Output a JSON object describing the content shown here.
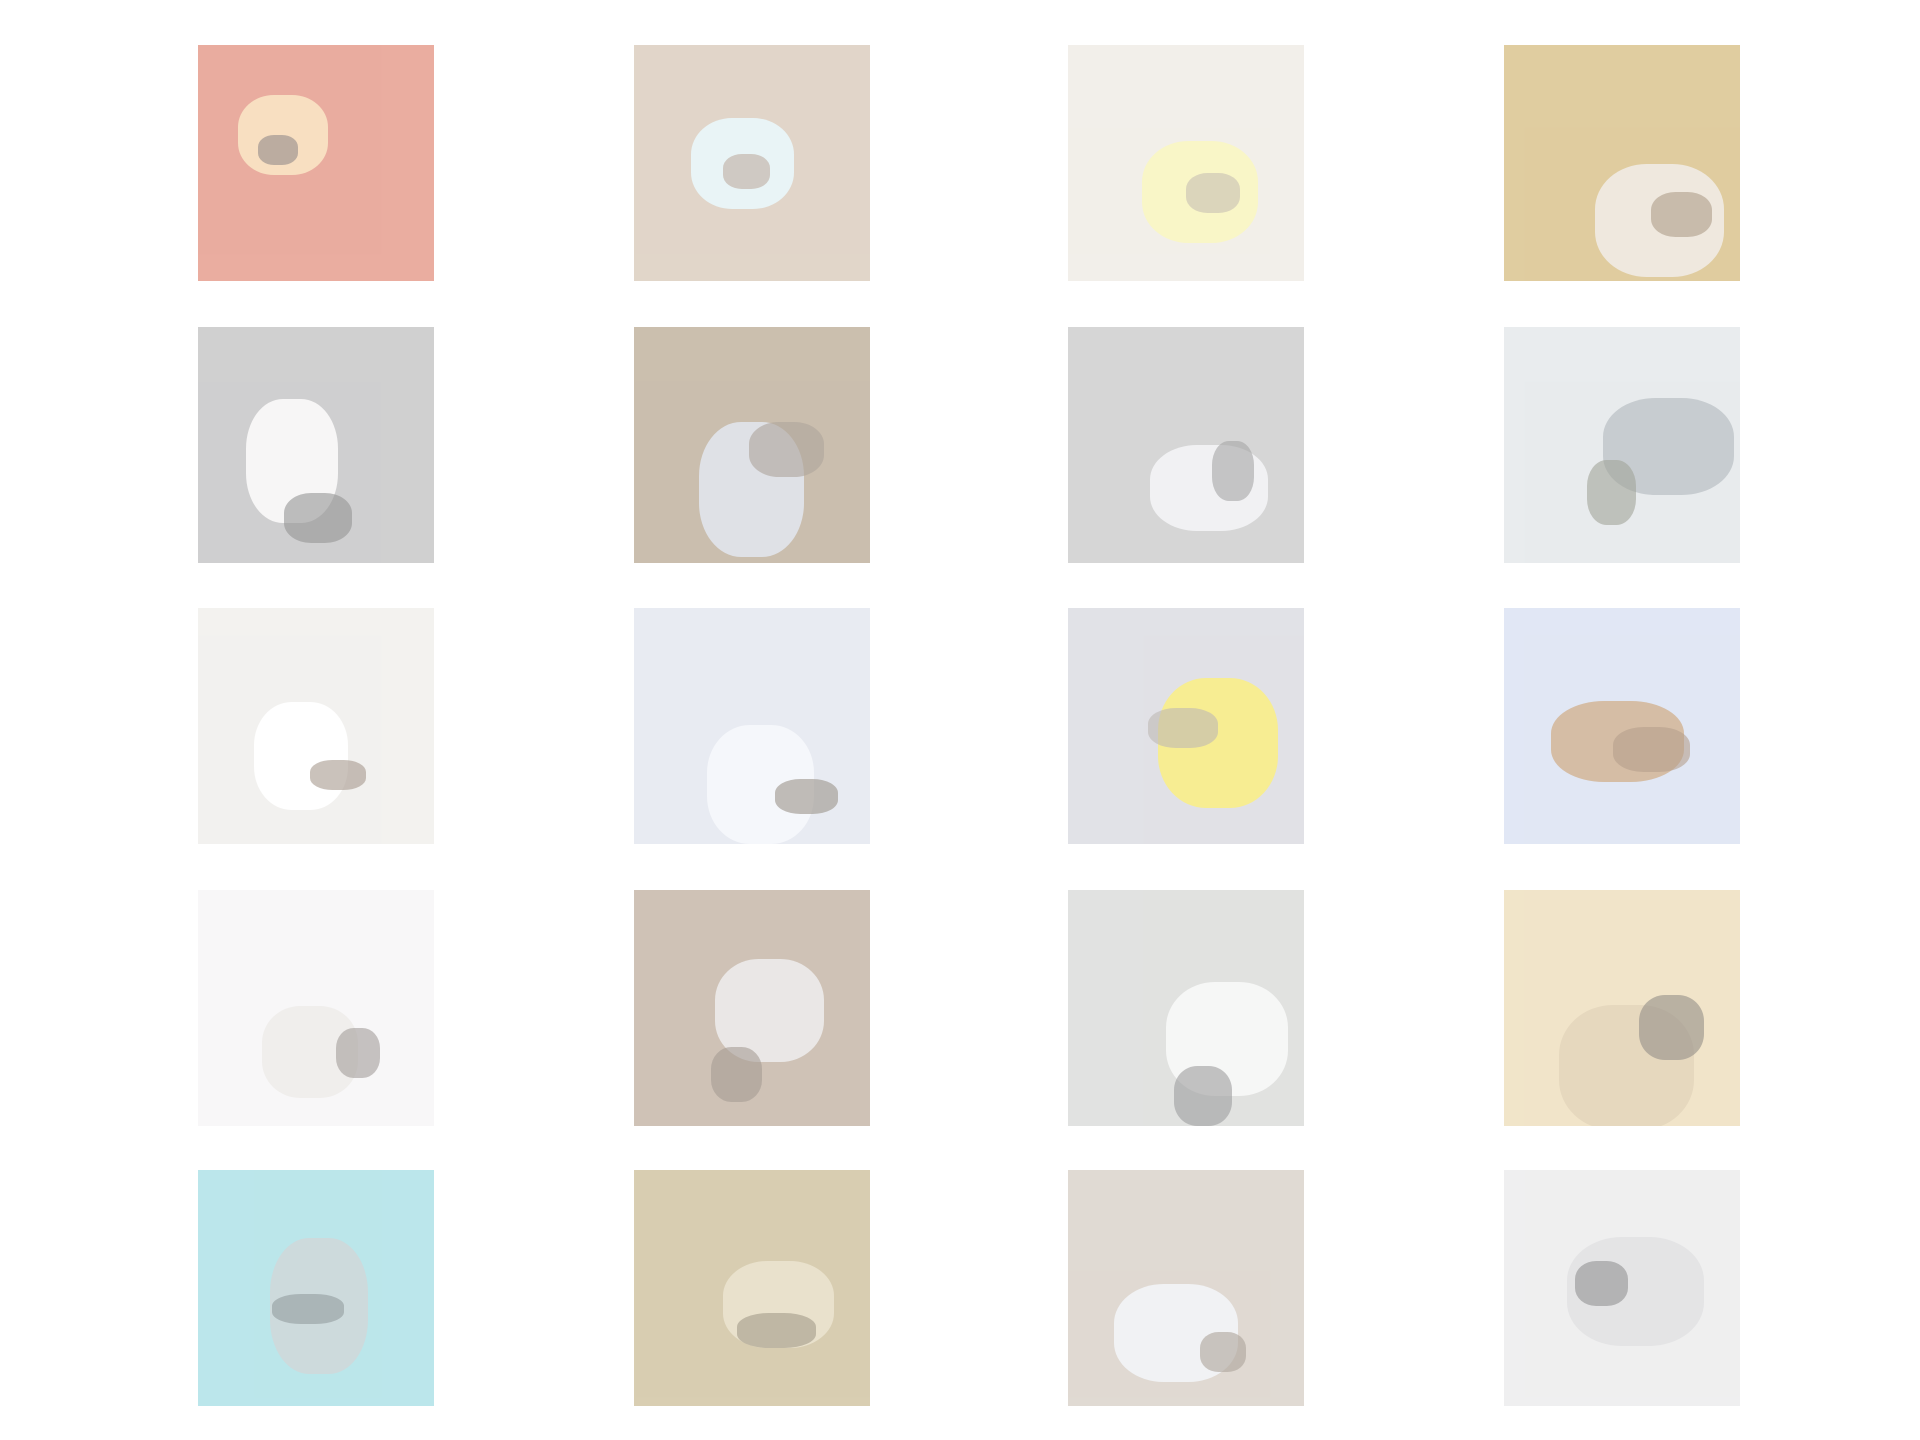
{
  "grid": {
    "rows": 5,
    "cols": 4,
    "tiles": [
      {
        "id": "tile-r1-c1",
        "bg": "#d86a52",
        "accent": "#f3c58f",
        "dark": "#3a2d2b"
      },
      {
        "id": "tile-r1-c2",
        "bg": "#c9b49d",
        "accent": "#d8ecef",
        "dark": "#8a6b55"
      },
      {
        "id": "tile-r1-c3",
        "bg": "#e8e2d8",
        "accent": "#f5ef9a",
        "dark": "#9a8a78"
      },
      {
        "id": "tile-r1-c4",
        "bg": "#c7a452",
        "accent": "#e3d7c4",
        "dark": "#6c4d2a"
      },
      {
        "id": "tile-r2-c1",
        "bg": "#a9a9aa",
        "accent": "#f1efef",
        "dark": "#404040"
      },
      {
        "id": "tile-r2-c2",
        "bg": "#a08a6c",
        "accent": "#c6c9d2",
        "dark": "#6c5b4b"
      },
      {
        "id": "tile-r2-c3",
        "bg": "#b5b5b5",
        "accent": "#e6e7ea",
        "dark": "#5e5e5e"
      },
      {
        "id": "tile-r2-c4",
        "bg": "#d7dce0",
        "accent": "#9aa4aa",
        "dark": "#565b46"
      },
      {
        "id": "tile-r3-c1",
        "bg": "#e9e7e2",
        "accent": "#ffffff",
        "dark": "#604734"
      },
      {
        "id": "tile-r3-c2",
        "bg": "#d6dbe8",
        "accent": "#eef1f8",
        "dark": "#4a3d2c"
      },
      {
        "id": "tile-r3-c3",
        "bg": "#c9cad3",
        "accent": "#f1df3a",
        "dark": "#8a7e78"
      },
      {
        "id": "tile-r3-c4",
        "bg": "#c9d4ec",
        "accent": "#b3885c",
        "dark": "#7c5231"
      },
      {
        "id": "tile-r4-c1",
        "bg": "#f3f1f3",
        "accent": "#e5e1dd",
        "dark": "#5a4f4b"
      },
      {
        "id": "tile-r4-c2",
        "bg": "#a8917b",
        "accent": "#d9d5d3",
        "dark": "#5d4b3e"
      },
      {
        "id": "tile-r4-c3",
        "bg": "#c9cbc8",
        "accent": "#f0f1f0",
        "dark": "#4e4f50"
      },
      {
        "id": "tile-r4-c4",
        "bg": "#e6cf9d",
        "accent": "#d2b98a",
        "dark": "#3d3428"
      },
      {
        "id": "tile-r5-c1",
        "bg": "#84d2da",
        "accent": "#a5bdc1",
        "dark": "#3b4d50"
      },
      {
        "id": "tile-r5-c2",
        "bg": "#b9a672",
        "accent": "#d8caa4",
        "dark": "#5a4b2c"
      },
      {
        "id": "tile-r5-c3",
        "bg": "#c7bbae",
        "accent": "#e6e8ec",
        "dark": "#6a5a4a"
      },
      {
        "id": "tile-r5-c4",
        "bg": "#e2e2e3",
        "accent": "#cfcfd1",
        "dark": "#3b3b3b"
      }
    ]
  }
}
